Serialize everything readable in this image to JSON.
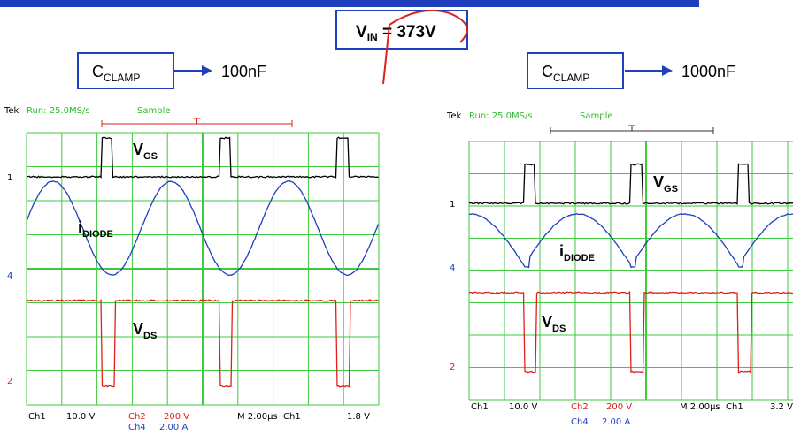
{
  "header": {
    "vin": {
      "main": "V",
      "sub": "IN",
      "rest": " = 373V"
    }
  },
  "panels": [
    {
      "clamp": {
        "main": "C",
        "sub": "CLAMP"
      },
      "value": "100nF",
      "scope": {
        "tek": "Tek",
        "run": "Run: 25.0MS/s",
        "mode": "Sample",
        "markers": [
          "1",
          "4",
          "2"
        ],
        "labels": [
          {
            "main": "V",
            "sub": "GS"
          },
          {
            "main": "i",
            "sub": "DIODE"
          },
          {
            "main": "V",
            "sub": "DS"
          }
        ],
        "status": {
          "ch1": "Ch1",
          "ch1v": "10.0 V",
          "ch2": "Ch2",
          "ch2v": "200 V",
          "ch4": "Ch4",
          "ch4v": "2.00 A",
          "time": "M 2.00µs",
          "trig": "Ch1",
          "trigv": "1.8 V"
        }
      }
    },
    {
      "clamp": {
        "main": "C",
        "sub": "CLAMP"
      },
      "value": "1000nF",
      "scope": {
        "tek": "Tek",
        "run": "Run: 25.0MS/s",
        "mode": "Sample",
        "markers": [
          "1",
          "4",
          "2"
        ],
        "labels": [
          {
            "main": "V",
            "sub": "GS"
          },
          {
            "main": "i",
            "sub": "DIODE"
          },
          {
            "main": "V",
            "sub": "DS"
          }
        ],
        "status": {
          "ch1": "Ch1",
          "ch1v": "10.0 V",
          "ch2": "Ch2",
          "ch2v": "200 V",
          "ch4": "Ch4",
          "ch4v": "2.00 A",
          "time": "M 2.00µs",
          "trig": "Ch1",
          "trigv": "3.2 V"
        }
      }
    }
  ]
}
